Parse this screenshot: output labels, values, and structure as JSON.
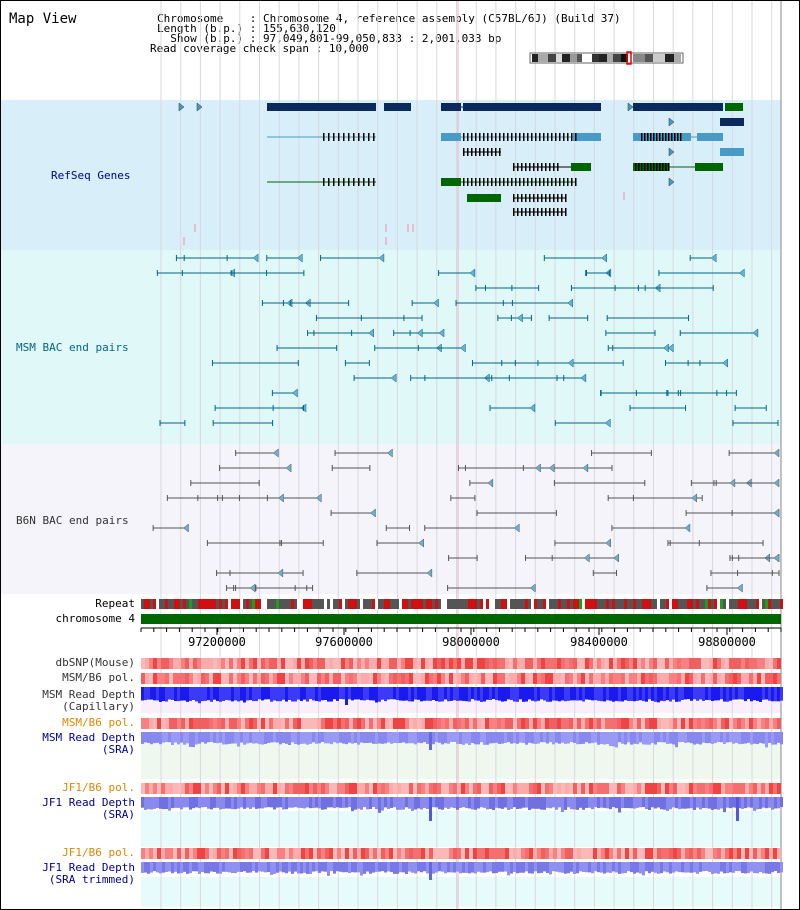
{
  "app": {
    "title": "Map View"
  },
  "info": {
    "rows": [
      {
        "label": "Chromosome    ",
        "value": "Chromosome 4, reference assembly (C57BL/6J) (Build 37)"
      },
      {
        "label": "Length (b.p.) ",
        "value": "155,630,120"
      },
      {
        "label": "  Show (b.p.) ",
        "value": "97,049,801-99,050,833 : 2,001,033 bp"
      }
    ],
    "coverage": {
      "label": "Read coverage check span ",
      "value": "10,000"
    }
  },
  "tracks": {
    "refseq": {
      "label": "RefSeq Genes",
      "color": "#000099"
    },
    "msm_bac": {
      "label": "MSM BAC end pairs",
      "color": "#006688"
    },
    "b6n_bac": {
      "label": "B6N BAC end pairs",
      "color": "#333333"
    },
    "repeat": {
      "label": "Repeat"
    },
    "chromosome": {
      "label": "chromosome 4"
    },
    "dbsnp": {
      "label": "dbSNP(Mouse)"
    },
    "msm_pol1": {
      "label": "MSM/B6 pol."
    },
    "msm_cap": {
      "line1": "MSM Read Depth",
      "line2": "(Capillary)"
    },
    "msm_pol2": {
      "label": "MSM/B6 pol."
    },
    "msm_sra": {
      "line1": "MSM Read Depth",
      "line2": "(SRA)"
    },
    "jf1_pol1": {
      "label": "JF1/B6 pol."
    },
    "jf1_sra": {
      "line1": "JF1 Read Depth",
      "line2": "(SRA)"
    },
    "jf1_pol2": {
      "label": "JF1/B6 pol."
    },
    "jf1_trim": {
      "line1": "JF1 Read Depth",
      "line2": "(SRA trimmed)"
    }
  },
  "ruler": {
    "ticks": [
      "97200000",
      "97600000",
      "98000000",
      "98400000",
      "98800000"
    ]
  },
  "colors": {
    "refseq_bg": "#d8eef8",
    "msm_bg": "#e0f8f8",
    "b6n_bg": "#f4f4fa",
    "gene_dark": "#0a2a5e",
    "gene_mid": "#4a9ac8",
    "gene_green": "#006600",
    "chromosome": "#006600",
    "label_blue": "#000099",
    "label_orange": "#e08800"
  }
}
